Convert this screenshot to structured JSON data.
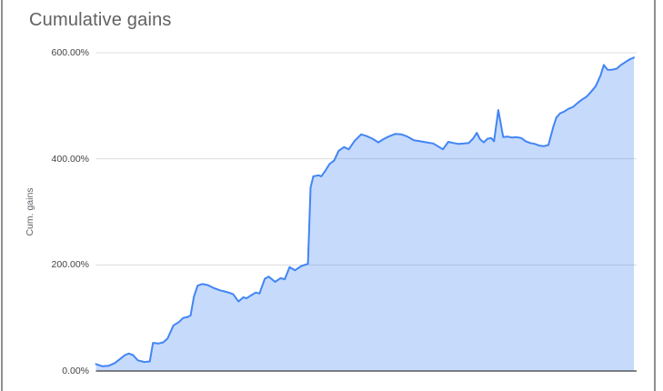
{
  "chart": {
    "title": "Cumulative gains",
    "y_axis_title": "Cum. gains"
  },
  "colors": {
    "line": "#4285f4",
    "fill": "rgba(66,133,244,0.3)",
    "gridline": "#dcdcdc",
    "axis_line": "#595959",
    "title_text": "#616161",
    "tick_text": "#444444",
    "border": "#8f8f8f"
  },
  "chart_data": {
    "type": "area",
    "title": "Cumulative gains",
    "xlabel": "",
    "ylabel": "Cum. gains",
    "series_name": "Cum. gains",
    "legend": "none",
    "grid": true,
    "ylim": [
      0,
      600
    ],
    "y_tick_values": [
      600,
      400,
      200,
      0
    ],
    "y_tick_labels": [
      "600.00%",
      "400.00%",
      "200.00%",
      "0.00%"
    ],
    "y_unit": "percent",
    "x_axis_labels_visible": false,
    "points_format": "[x_fraction_of_axis, cumulative_gain_percent]",
    "points": [
      [
        0.0,
        13
      ],
      [
        0.012,
        9
      ],
      [
        0.024,
        10
      ],
      [
        0.035,
        15
      ],
      [
        0.044,
        22
      ],
      [
        0.054,
        30
      ],
      [
        0.061,
        33
      ],
      [
        0.069,
        30
      ],
      [
        0.078,
        20
      ],
      [
        0.09,
        17
      ],
      [
        0.1,
        18
      ],
      [
        0.106,
        53
      ],
      [
        0.117,
        52
      ],
      [
        0.125,
        54
      ],
      [
        0.133,
        61
      ],
      [
        0.144,
        86
      ],
      [
        0.154,
        92
      ],
      [
        0.162,
        100
      ],
      [
        0.171,
        102
      ],
      [
        0.176,
        105
      ],
      [
        0.182,
        140
      ],
      [
        0.189,
        161
      ],
      [
        0.198,
        164
      ],
      [
        0.208,
        162
      ],
      [
        0.22,
        156
      ],
      [
        0.231,
        152
      ],
      [
        0.243,
        149
      ],
      [
        0.255,
        145
      ],
      [
        0.265,
        131
      ],
      [
        0.274,
        139
      ],
      [
        0.28,
        137
      ],
      [
        0.289,
        143
      ],
      [
        0.297,
        148
      ],
      [
        0.304,
        146
      ],
      [
        0.314,
        174
      ],
      [
        0.321,
        178
      ],
      [
        0.333,
        168
      ],
      [
        0.343,
        175
      ],
      [
        0.351,
        173
      ],
      [
        0.36,
        196
      ],
      [
        0.37,
        190
      ],
      [
        0.382,
        198
      ],
      [
        0.394,
        202
      ],
      [
        0.399,
        346
      ],
      [
        0.404,
        367
      ],
      [
        0.414,
        369
      ],
      [
        0.419,
        367
      ],
      [
        0.426,
        377
      ],
      [
        0.434,
        390
      ],
      [
        0.443,
        397
      ],
      [
        0.451,
        415
      ],
      [
        0.461,
        422
      ],
      [
        0.47,
        418
      ],
      [
        0.481,
        434
      ],
      [
        0.493,
        446
      ],
      [
        0.503,
        443
      ],
      [
        0.514,
        438
      ],
      [
        0.525,
        431
      ],
      [
        0.534,
        437
      ],
      [
        0.544,
        442
      ],
      [
        0.556,
        447
      ],
      [
        0.568,
        446
      ],
      [
        0.579,
        442
      ],
      [
        0.591,
        435
      ],
      [
        0.603,
        433
      ],
      [
        0.615,
        431
      ],
      [
        0.627,
        429
      ],
      [
        0.637,
        423
      ],
      [
        0.645,
        418
      ],
      [
        0.655,
        432
      ],
      [
        0.664,
        430
      ],
      [
        0.674,
        428
      ],
      [
        0.684,
        429
      ],
      [
        0.693,
        430
      ],
      [
        0.701,
        438
      ],
      [
        0.708,
        449
      ],
      [
        0.714,
        437
      ],
      [
        0.721,
        431
      ],
      [
        0.728,
        438
      ],
      [
        0.735,
        439
      ],
      [
        0.74,
        433
      ],
      [
        0.748,
        492
      ],
      [
        0.757,
        441
      ],
      [
        0.765,
        442
      ],
      [
        0.774,
        440
      ],
      [
        0.782,
        441
      ],
      [
        0.791,
        439
      ],
      [
        0.799,
        433
      ],
      [
        0.807,
        430
      ],
      [
        0.816,
        428
      ],
      [
        0.824,
        425
      ],
      [
        0.833,
        424
      ],
      [
        0.841,
        426
      ],
      [
        0.85,
        460
      ],
      [
        0.856,
        478
      ],
      [
        0.863,
        486
      ],
      [
        0.87,
        489
      ],
      [
        0.878,
        494
      ],
      [
        0.887,
        498
      ],
      [
        0.895,
        505
      ],
      [
        0.904,
        512
      ],
      [
        0.912,
        517
      ],
      [
        0.92,
        526
      ],
      [
        0.929,
        537
      ],
      [
        0.938,
        557
      ],
      [
        0.944,
        577
      ],
      [
        0.951,
        568
      ],
      [
        0.959,
        568
      ],
      [
        0.968,
        570
      ],
      [
        0.976,
        577
      ],
      [
        0.985,
        583
      ],
      [
        0.993,
        588
      ],
      [
        1.0,
        591
      ]
    ]
  }
}
